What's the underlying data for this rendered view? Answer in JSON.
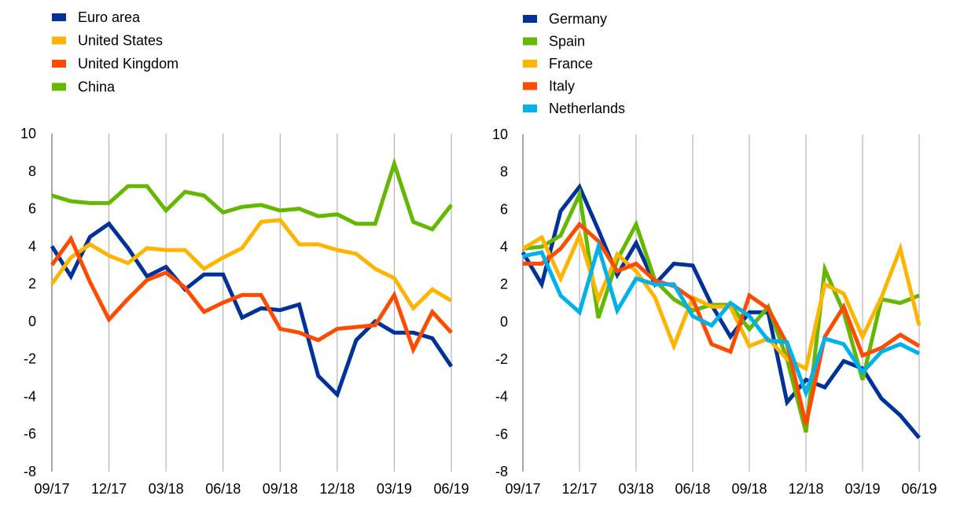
{
  "chart_data": [
    {
      "type": "line",
      "title": "",
      "xlabel": "",
      "ylabel": "",
      "ylim": [
        -8,
        10
      ],
      "yticks": [
        -8,
        -6,
        -4,
        -2,
        0,
        2,
        4,
        6,
        8,
        10
      ],
      "ytick_labels": [
        "-8",
        "-6",
        "-4",
        "-2",
        "0",
        "2",
        "4",
        "6",
        "8",
        "10"
      ],
      "x": [
        "09/17",
        "10/17",
        "11/17",
        "12/17",
        "01/18",
        "02/18",
        "03/18",
        "04/18",
        "05/18",
        "06/18",
        "07/18",
        "08/18",
        "09/18",
        "10/18",
        "11/18",
        "12/18",
        "01/19",
        "02/19",
        "03/19",
        "04/19",
        "05/19",
        "06/19"
      ],
      "xtick_labels": [
        "09/17",
        "12/17",
        "03/18",
        "06/18",
        "09/18",
        "12/18",
        "03/19",
        "06/19"
      ],
      "legend_placement": "top-left",
      "series": [
        {
          "name": "Euro area",
          "color": "#003299",
          "values": [
            4.0,
            2.4,
            4.5,
            5.2,
            3.9,
            2.4,
            2.9,
            1.7,
            2.5,
            2.5,
            0.2,
            0.7,
            0.6,
            0.9,
            -2.9,
            -3.9,
            -1.0,
            0.0,
            -0.6,
            -0.6,
            -0.9,
            -2.4
          ]
        },
        {
          "name": "United States",
          "color": "#FFB400",
          "values": [
            2.0,
            3.4,
            4.1,
            3.5,
            3.1,
            3.9,
            3.8,
            3.8,
            2.8,
            3.4,
            3.9,
            5.3,
            5.4,
            4.1,
            4.1,
            3.8,
            3.6,
            2.8,
            2.3,
            0.7,
            1.7,
            1.1
          ]
        },
        {
          "name": "United Kingdom",
          "color": "#FF4B00",
          "values": [
            3.0,
            4.4,
            2.1,
            0.1,
            1.2,
            2.2,
            2.6,
            1.8,
            0.5,
            1.0,
            1.4,
            1.4,
            -0.4,
            -0.6,
            -1.0,
            -0.4,
            -0.3,
            -0.2,
            1.4,
            -1.5,
            0.5,
            -0.6
          ]
        },
        {
          "name": "China",
          "color": "#65B800",
          "values": [
            6.7,
            6.4,
            6.3,
            6.3,
            7.2,
            7.2,
            5.9,
            6.9,
            6.7,
            5.8,
            6.1,
            6.2,
            5.9,
            6.0,
            5.6,
            5.7,
            5.2,
            5.2,
            8.4,
            5.3,
            4.9,
            6.2
          ]
        }
      ]
    },
    {
      "type": "line",
      "title": "",
      "xlabel": "",
      "ylabel": "",
      "ylim": [
        -8,
        10
      ],
      "yticks": [
        -8,
        -6,
        -4,
        -2,
        0,
        2,
        4,
        6,
        8,
        10
      ],
      "ytick_labels": [
        "-8",
        "-6",
        "-4",
        "-2",
        "0",
        "2",
        "4",
        "6",
        "8",
        "10"
      ],
      "x": [
        "09/17",
        "10/17",
        "11/17",
        "12/17",
        "01/18",
        "02/18",
        "03/18",
        "04/18",
        "05/18",
        "06/18",
        "07/18",
        "08/18",
        "09/18",
        "10/18",
        "11/18",
        "12/18",
        "01/19",
        "02/19",
        "03/19",
        "04/19",
        "05/19",
        "06/19"
      ],
      "xtick_labels": [
        "09/17",
        "12/17",
        "03/18",
        "06/18",
        "09/18",
        "12/18",
        "03/19",
        "06/19"
      ],
      "legend_placement": "top-left",
      "series": [
        {
          "name": "Germany",
          "color": "#003299",
          "values": [
            3.7,
            2.0,
            5.9,
            7.2,
            4.9,
            2.5,
            4.2,
            2.0,
            3.1,
            3.0,
            0.9,
            -0.8,
            0.5,
            0.5,
            -4.3,
            -3.1,
            -3.5,
            -2.1,
            -2.5,
            -4.1,
            -5.0,
            -6.2
          ]
        },
        {
          "name": "Spain",
          "color": "#65B800",
          "values": [
            3.9,
            4.0,
            4.6,
            6.8,
            0.2,
            3.3,
            5.2,
            2.2,
            1.2,
            0.6,
            0.9,
            0.9,
            -0.4,
            0.8,
            -2.0,
            -5.9,
            2.8,
            0.5,
            -3.1,
            1.2,
            1.0,
            1.4
          ]
        },
        {
          "name": "France",
          "color": "#FFB400",
          "values": [
            3.9,
            4.5,
            2.3,
            4.6,
            1.2,
            3.6,
            2.7,
            1.3,
            -1.3,
            1.3,
            0.8,
            0.8,
            -1.3,
            -0.9,
            -2.0,
            -2.5,
            2.0,
            1.5,
            -0.8,
            1.3,
            3.9,
            -0.2
          ]
        },
        {
          "name": "Italy",
          "color": "#FF4B00",
          "values": [
            3.1,
            3.1,
            3.9,
            5.2,
            4.3,
            2.7,
            3.1,
            2.2,
            1.9,
            1.2,
            -1.2,
            -1.6,
            1.4,
            0.7,
            -1.2,
            -5.5,
            -0.8,
            0.8,
            -1.8,
            -1.4,
            -0.7,
            -1.3
          ]
        },
        {
          "name": "Netherlands",
          "color": "#00B1EA",
          "values": [
            3.5,
            3.7,
            1.4,
            0.5,
            4.0,
            0.6,
            2.3,
            2.0,
            2.0,
            0.3,
            -0.2,
            1.0,
            0.3,
            -1.0,
            -1.1,
            -3.8,
            -0.9,
            -1.2,
            -2.7,
            -1.6,
            -1.2,
            -1.7
          ]
        }
      ]
    }
  ]
}
